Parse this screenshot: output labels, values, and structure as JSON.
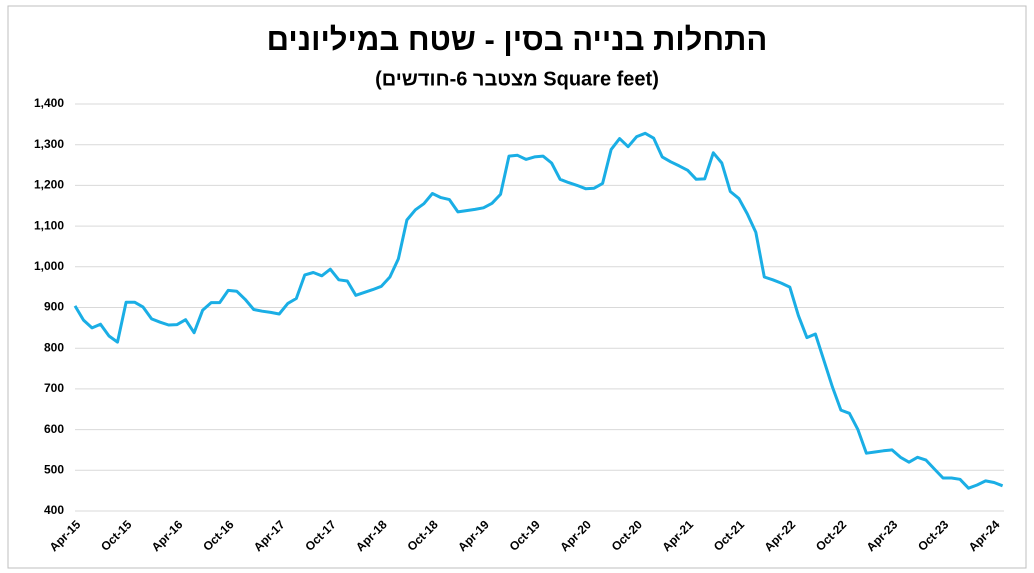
{
  "chart_data": {
    "type": "line",
    "title": "התחלות בנייה בסין - שטח במיליונים",
    "subtitle": "(Square feet מצטבר 6-חודשים)",
    "categories": [
      "Apr-15",
      null,
      null,
      null,
      null,
      null,
      "Oct-15",
      null,
      null,
      null,
      null,
      null,
      "Apr-16",
      null,
      null,
      null,
      null,
      null,
      "Oct-16",
      null,
      null,
      null,
      null,
      null,
      "Apr-17",
      null,
      null,
      null,
      null,
      null,
      "Oct-17",
      null,
      null,
      null,
      null,
      null,
      "Apr-18",
      null,
      null,
      null,
      null,
      null,
      "Oct-18",
      null,
      null,
      null,
      null,
      null,
      "Apr-19",
      null,
      null,
      null,
      null,
      null,
      "Oct-19",
      null,
      null,
      null,
      null,
      null,
      "Apr-20",
      null,
      null,
      null,
      null,
      null,
      "Oct-20",
      null,
      null,
      null,
      null,
      null,
      "Apr-21",
      null,
      null,
      null,
      null,
      null,
      "Oct-21",
      null,
      null,
      null,
      null,
      null,
      "Apr-22",
      null,
      null,
      null,
      null,
      null,
      "Oct-22",
      null,
      null,
      null,
      null,
      null,
      "Apr-23",
      null,
      null,
      null,
      null,
      null,
      "Oct-23",
      null,
      null,
      null,
      null,
      null,
      "Apr-24",
      null
    ],
    "series": [
      {
        "color": "#1aaee5",
        "values": [
          904,
          869,
          850,
          859,
          830,
          815,
          913,
          913,
          901,
          872,
          864,
          857,
          858,
          870,
          838,
          893,
          912,
          912,
          942,
          940,
          920,
          895,
          891,
          888,
          884,
          910,
          922,
          980,
          986,
          978,
          994,
          968,
          965,
          930,
          937,
          944,
          952,
          975,
          1020,
          1115,
          1140,
          1155,
          1180,
          1170,
          1165,
          1135,
          1138,
          1141,
          1145,
          1156,
          1178,
          1272,
          1274,
          1264,
          1270,
          1272,
          1255,
          1215,
          1207,
          1200,
          1192,
          1193,
          1205,
          1288,
          1315,
          1295,
          1320,
          1328,
          1316,
          1270,
          1258,
          1248,
          1237,
          1215,
          1216,
          1280,
          1255,
          1185,
          1168,
          1130,
          1085,
          975,
          968,
          960,
          950,
          880,
          826,
          835,
          770,
          705,
          648,
          640,
          600,
          542,
          545,
          548,
          550,
          532,
          520,
          532,
          525,
          503,
          481,
          481,
          478,
          456,
          464,
          474,
          470,
          462
        ]
      }
    ],
    "ylim": [
      400,
      1400
    ],
    "yticks": [
      400,
      500,
      600,
      700,
      800,
      900,
      {
        "value": 1000,
        "label": "1,000"
      },
      {
        "value": 1100,
        "label": "1,100"
      },
      {
        "value": 1200,
        "label": "1,200"
      },
      {
        "value": 1300,
        "label": "1,300"
      },
      {
        "value": 1400,
        "label": "1,400"
      }
    ],
    "grid": true
  }
}
